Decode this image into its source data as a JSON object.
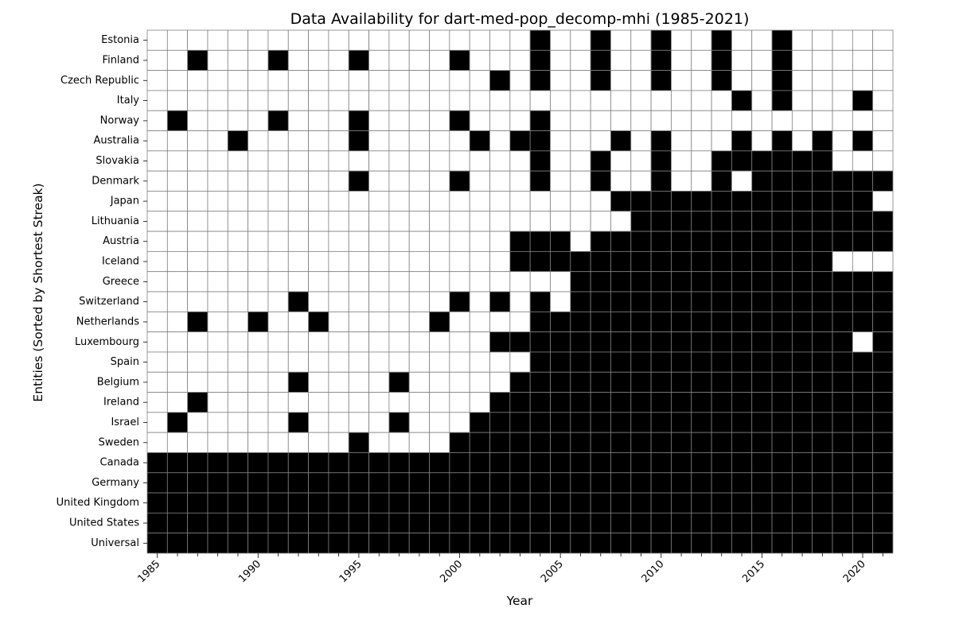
{
  "chart_data": {
    "type": "heatmap",
    "title": "Data Availability for dart-med-pop_decomp-mhi (1985-2021)",
    "xlabel": "Year",
    "ylabel": "Entities (Sorted by Shortest Streak)",
    "years": [
      1985,
      1986,
      1987,
      1988,
      1989,
      1990,
      1991,
      1992,
      1993,
      1994,
      1995,
      1996,
      1997,
      1998,
      1999,
      2000,
      2001,
      2002,
      2003,
      2004,
      2005,
      2006,
      2007,
      2008,
      2009,
      2010,
      2011,
      2012,
      2013,
      2014,
      2015,
      2016,
      2017,
      2018,
      2019,
      2020,
      2021
    ],
    "x_ticks": [
      1985,
      1990,
      1995,
      2000,
      2005,
      2010,
      2015,
      2020
    ],
    "colors": {
      "available": "#000000",
      "missing": "#ffffff",
      "grid": "#808080"
    },
    "rows": [
      {
        "entity": "Estonia",
        "available_years": [
          2004,
          2007,
          2010,
          2013,
          2016
        ]
      },
      {
        "entity": "Finland",
        "available_years": [
          1987,
          1991,
          1995,
          2000,
          2004,
          2007,
          2010,
          2013,
          2016
        ]
      },
      {
        "entity": "Czech Republic",
        "available_years": [
          2002,
          2004,
          2007,
          2010,
          2013,
          2016
        ]
      },
      {
        "entity": "Italy",
        "available_years": [
          2014,
          2016,
          2020
        ]
      },
      {
        "entity": "Norway",
        "available_years": [
          1986,
          1991,
          1995,
          2000,
          2004
        ]
      },
      {
        "entity": "Australia",
        "available_years": [
          1989,
          1995,
          2001,
          2003,
          2004,
          2008,
          2010,
          2014,
          2016,
          2018,
          2020
        ]
      },
      {
        "entity": "Slovakia",
        "available_years": [
          2004,
          2007,
          2010,
          2013,
          2014,
          2015,
          2016,
          2017,
          2018
        ]
      },
      {
        "entity": "Denmark",
        "available_years": [
          1995,
          2000,
          2004,
          2007,
          2010,
          2013,
          2015,
          2016,
          2017,
          2018,
          2019,
          2020,
          2021
        ]
      },
      {
        "entity": "Japan",
        "available_years": [
          2008,
          2009,
          2010,
          2011,
          2012,
          2013,
          2014,
          2015,
          2016,
          2017,
          2018,
          2019,
          2020
        ]
      },
      {
        "entity": "Lithuania",
        "available_years": [
          2009,
          2010,
          2011,
          2012,
          2013,
          2014,
          2015,
          2016,
          2017,
          2018,
          2019,
          2020,
          2021
        ]
      },
      {
        "entity": "Austria",
        "available_years": [
          2003,
          2004,
          2005,
          2007,
          2008,
          2009,
          2010,
          2011,
          2012,
          2013,
          2014,
          2015,
          2016,
          2017,
          2018,
          2019,
          2020,
          2021
        ]
      },
      {
        "entity": "Iceland",
        "available_years": [
          2003,
          2004,
          2005,
          2006,
          2007,
          2008,
          2009,
          2010,
          2011,
          2012,
          2013,
          2014,
          2015,
          2016,
          2017,
          2018
        ]
      },
      {
        "entity": "Greece",
        "available_years": [
          2006,
          2007,
          2008,
          2009,
          2010,
          2011,
          2012,
          2013,
          2014,
          2015,
          2016,
          2017,
          2018,
          2019,
          2020,
          2021
        ]
      },
      {
        "entity": "Switzerland",
        "available_years": [
          1992,
          2000,
          2002,
          2004,
          2006,
          2007,
          2008,
          2009,
          2010,
          2011,
          2012,
          2013,
          2014,
          2015,
          2016,
          2017,
          2018,
          2019,
          2020,
          2021
        ]
      },
      {
        "entity": "Netherlands",
        "available_years": [
          1987,
          1990,
          1993,
          1999,
          2004,
          2005,
          2006,
          2007,
          2008,
          2009,
          2010,
          2011,
          2012,
          2013,
          2014,
          2015,
          2016,
          2017,
          2018,
          2019,
          2020,
          2021
        ]
      },
      {
        "entity": "Luxembourg",
        "available_years": [
          2002,
          2003,
          2004,
          2005,
          2006,
          2007,
          2008,
          2009,
          2010,
          2011,
          2012,
          2013,
          2014,
          2015,
          2016,
          2017,
          2018,
          2019,
          2021
        ]
      },
      {
        "entity": "Spain",
        "available_years": [
          2004,
          2005,
          2006,
          2007,
          2008,
          2009,
          2010,
          2011,
          2012,
          2013,
          2014,
          2015,
          2016,
          2017,
          2018,
          2019,
          2020,
          2021
        ]
      },
      {
        "entity": "Belgium",
        "available_years": [
          1992,
          1997,
          2003,
          2004,
          2005,
          2006,
          2007,
          2008,
          2009,
          2010,
          2011,
          2012,
          2013,
          2014,
          2015,
          2016,
          2017,
          2018,
          2019,
          2020,
          2021
        ]
      },
      {
        "entity": "Ireland",
        "available_years": [
          1987,
          2002,
          2003,
          2004,
          2005,
          2006,
          2007,
          2008,
          2009,
          2010,
          2011,
          2012,
          2013,
          2014,
          2015,
          2016,
          2017,
          2018,
          2019,
          2020,
          2021
        ]
      },
      {
        "entity": "Israel",
        "available_years": [
          1986,
          1992,
          1997,
          2001,
          2002,
          2003,
          2004,
          2005,
          2006,
          2007,
          2008,
          2009,
          2010,
          2011,
          2012,
          2013,
          2014,
          2015,
          2016,
          2017,
          2018,
          2019,
          2020,
          2021
        ]
      },
      {
        "entity": "Sweden",
        "available_years": [
          1995,
          2000,
          2001,
          2002,
          2003,
          2004,
          2005,
          2006,
          2007,
          2008,
          2009,
          2010,
          2011,
          2012,
          2013,
          2014,
          2015,
          2016,
          2017,
          2018,
          2019,
          2020,
          2021
        ]
      },
      {
        "entity": "Canada",
        "available_years": "all"
      },
      {
        "entity": "Germany",
        "available_years": "all"
      },
      {
        "entity": "United Kingdom",
        "available_years": "all"
      },
      {
        "entity": "United States",
        "available_years": "all"
      },
      {
        "entity": "Universal",
        "available_years": "all"
      }
    ]
  }
}
